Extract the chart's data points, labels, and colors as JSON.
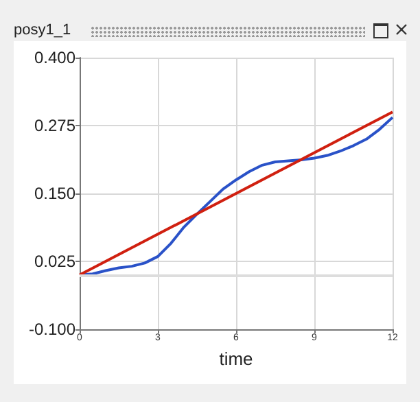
{
  "chart_data": {
    "type": "line",
    "title": "posy1_1",
    "xlabel": "time",
    "x": [
      0,
      0.5,
      1,
      1.5,
      2,
      2.5,
      3,
      3.5,
      4,
      4.5,
      5,
      5.5,
      6,
      6.5,
      7,
      7.5,
      8,
      8.5,
      9,
      9.5,
      10,
      10.5,
      11,
      11.5,
      12
    ],
    "series": [
      {
        "color": "#2a52c8",
        "values": [
          0.0,
          0.002,
          0.008,
          0.013,
          0.016,
          0.022,
          0.034,
          0.058,
          0.088,
          0.112,
          0.135,
          0.158,
          0.175,
          0.19,
          0.202,
          0.208,
          0.21,
          0.212,
          0.215,
          0.22,
          0.228,
          0.238,
          0.25,
          0.268,
          0.29
        ]
      },
      {
        "color": "#d02010",
        "x": [
          0,
          12
        ],
        "values": [
          0.0,
          0.3
        ]
      }
    ],
    "xlim": [
      0,
      12
    ],
    "xticks": [
      0,
      3,
      6,
      9,
      12
    ],
    "ylim": [
      -0.1,
      0.4
    ],
    "yticks": [
      {
        "value": -0.1,
        "label": "-0.100"
      },
      {
        "value": 0.025,
        "label": "0.025"
      },
      {
        "value": 0.15,
        "label": "0.150"
      },
      {
        "value": 0.275,
        "label": "0.275"
      },
      {
        "value": 0.4,
        "label": "0.400"
      }
    ],
    "ref_lines": [
      {
        "axis": "y",
        "value": 0,
        "color": "#dddddd"
      }
    ],
    "grid": true,
    "marker": "none",
    "line_style": "solid"
  }
}
